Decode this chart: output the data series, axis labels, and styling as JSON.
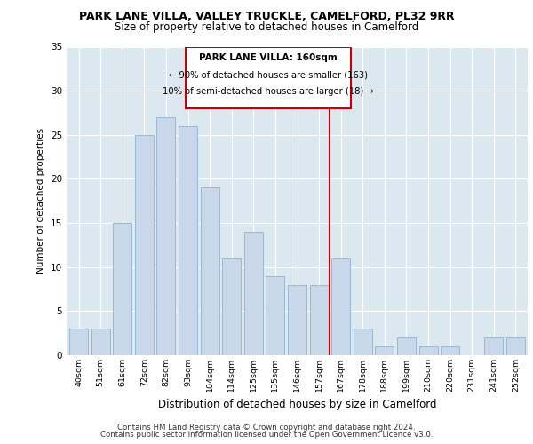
{
  "title1": "PARK LANE VILLA, VALLEY TRUCKLE, CAMELFORD, PL32 9RR",
  "title2": "Size of property relative to detached houses in Camelford",
  "xlabel": "Distribution of detached houses by size in Camelford",
  "ylabel": "Number of detached properties",
  "categories": [
    "40sqm",
    "51sqm",
    "61sqm",
    "72sqm",
    "82sqm",
    "93sqm",
    "104sqm",
    "114sqm",
    "125sqm",
    "135sqm",
    "146sqm",
    "157sqm",
    "167sqm",
    "178sqm",
    "188sqm",
    "199sqm",
    "210sqm",
    "220sqm",
    "231sqm",
    "241sqm",
    "252sqm"
  ],
  "values": [
    3,
    3,
    15,
    25,
    27,
    26,
    19,
    11,
    14,
    9,
    8,
    8,
    11,
    3,
    1,
    2,
    1,
    1,
    0,
    2,
    2
  ],
  "bar_color": "#c8d8ea",
  "bar_edge_color": "#9ab8d0",
  "vline_x": 11.5,
  "vline_color": "#cc0000",
  "annotation_title": "PARK LANE VILLA: 160sqm",
  "annotation_line1": "← 90% of detached houses are smaller (163)",
  "annotation_line2": "10% of semi-detached houses are larger (18) →",
  "annotation_box_color": "#cc0000",
  "background_color": "#dce8f0",
  "ylim": [
    0,
    35
  ],
  "yticks": [
    0,
    5,
    10,
    15,
    20,
    25,
    30,
    35
  ],
  "footer1": "Contains HM Land Registry data © Crown copyright and database right 2024.",
  "footer2": "Contains public sector information licensed under the Open Government Licence v3.0."
}
